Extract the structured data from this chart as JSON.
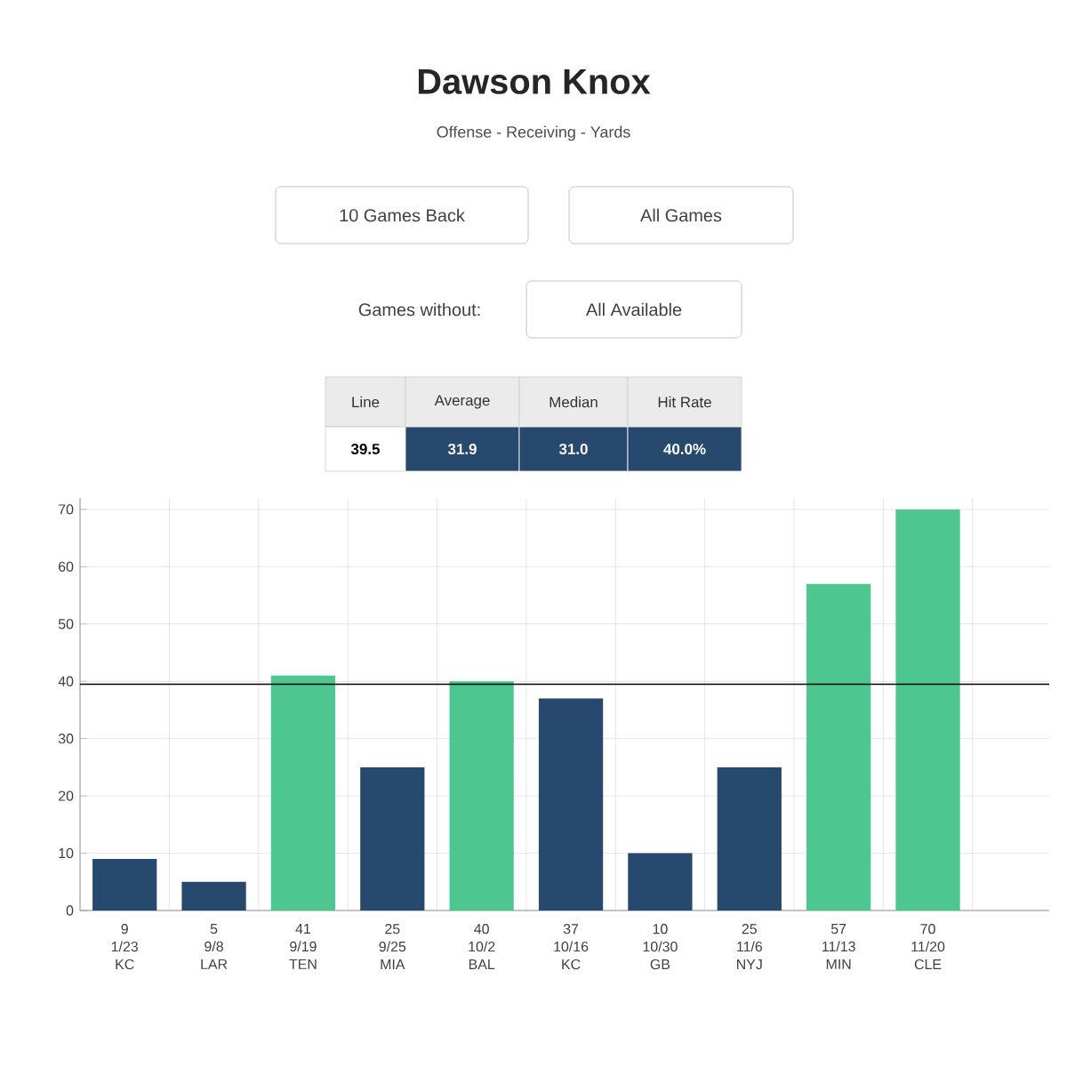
{
  "chart_data": {
    "type": "bar",
    "title": "Dawson Knox",
    "subtitle": "Offense - Receiving - Yards",
    "categories": [
      "1/23 KC",
      "9/8 LAR",
      "9/19 TEN",
      "9/25 MIA",
      "10/2 BAL",
      "10/16 KC",
      "10/30 GB",
      "11/6 NYJ",
      "11/13 MIN",
      "11/20 CLE"
    ],
    "values": [
      9,
      5,
      41,
      25,
      40,
      37,
      10,
      25,
      57,
      70
    ],
    "colors": [
      "#27496d",
      "#27496d",
      "#4dc68f",
      "#27496d",
      "#4dc68f",
      "#27496d",
      "#27496d",
      "#27496d",
      "#4dc68f",
      "#4dc68f"
    ],
    "data_labels": true,
    "ylim": [
      0,
      72
    ],
    "yticks": [
      0,
      10,
      20,
      30,
      40,
      50,
      60,
      70
    ],
    "grid": true,
    "ref_lines": [
      {
        "axis": "y",
        "value": 39.5,
        "color": "#000000"
      }
    ],
    "annotations": [
      "10 Games Back",
      "All Games",
      "Games without:",
      "All Available",
      "Line",
      "Average",
      "Median",
      "Hit Rate",
      "39.5",
      "31.9",
      "31.0",
      "40.0%"
    ]
  }
}
